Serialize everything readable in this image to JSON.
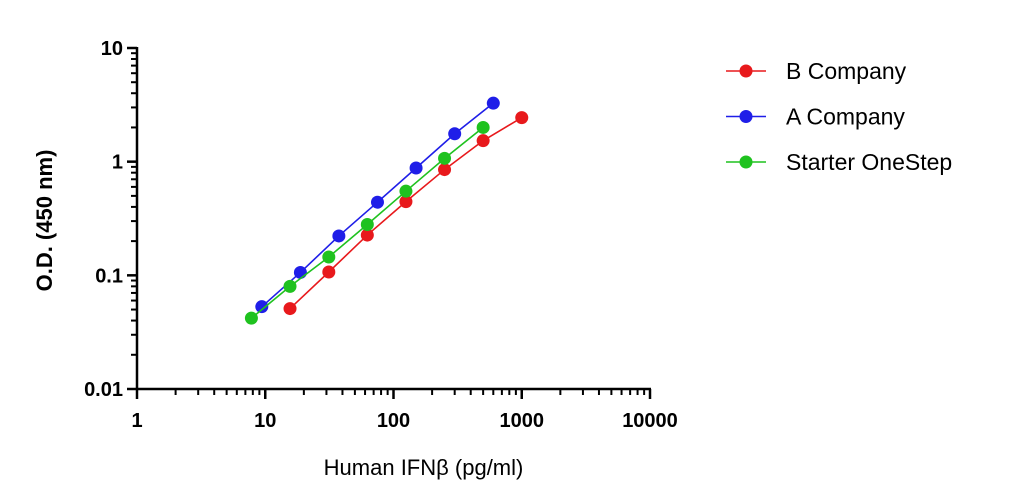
{
  "chart_data": {
    "type": "line",
    "xlabel": "Human IFNβ (pg/ml)",
    "ylabel": "O.D. (450 nm)",
    "xscale": "log",
    "yscale": "log",
    "xlim": [
      1,
      10000
    ],
    "ylim": [
      0.01,
      10
    ],
    "x_ticks": [
      {
        "value": 1,
        "label": "1"
      },
      {
        "value": 10,
        "label": "10"
      },
      {
        "value": 100,
        "label": "100"
      },
      {
        "value": 1000,
        "label": "1000"
      },
      {
        "value": 10000,
        "label": "10000"
      }
    ],
    "y_ticks": [
      {
        "value": 0.01,
        "label": "0.01"
      },
      {
        "value": 0.1,
        "label": "0.1"
      },
      {
        "value": 1,
        "label": "1"
      },
      {
        "value": 10,
        "label": "10"
      }
    ],
    "grid": false,
    "legend_position": "right",
    "series": [
      {
        "name": "B Company",
        "color": "#e8191c",
        "x": [
          15.6,
          31.3,
          62.5,
          125,
          250,
          500,
          1000
        ],
        "y": [
          0.051,
          0.107,
          0.226,
          0.445,
          0.852,
          1.53,
          2.44
        ]
      },
      {
        "name": "A Company",
        "color": "#1f1ee8",
        "x": [
          9.4,
          18.8,
          37.5,
          75,
          150,
          300,
          600
        ],
        "y": [
          0.053,
          0.106,
          0.222,
          0.44,
          0.88,
          1.76,
          3.27
        ]
      },
      {
        "name": "Starter OneStep",
        "color": "#1fc21f",
        "x": [
          7.8,
          15.6,
          31.3,
          62.5,
          125,
          250,
          500
        ],
        "y": [
          0.042,
          0.08,
          0.145,
          0.28,
          0.55,
          1.07,
          2.0
        ]
      }
    ]
  }
}
